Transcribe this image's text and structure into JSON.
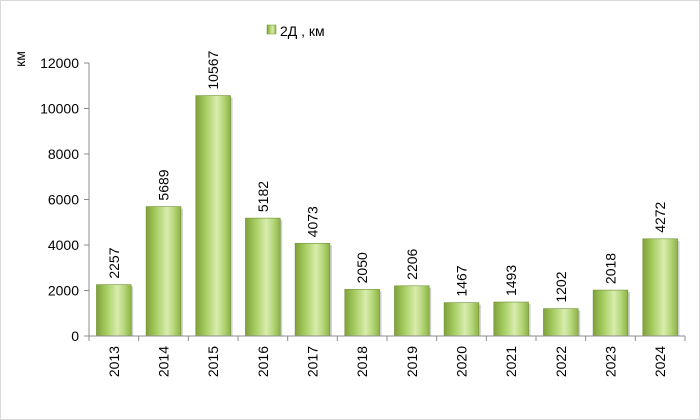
{
  "chart_data": {
    "type": "bar",
    "categories": [
      "2013",
      "2014",
      "2015",
      "2016",
      "2017",
      "2018",
      "2019",
      "2020",
      "2021",
      "2022",
      "2023",
      "2024"
    ],
    "series": [
      {
        "name": "2Д , км",
        "values": [
          2257,
          5689,
          10567,
          5182,
          4073,
          2050,
          2206,
          1467,
          1493,
          1202,
          2018,
          4272
        ]
      }
    ],
    "ylabel": "км",
    "ylim": [
      0,
      12000
    ],
    "yticks": [
      0,
      2000,
      4000,
      6000,
      8000,
      10000,
      12000
    ],
    "grid": false,
    "legend_position": "top-center",
    "colors": {
      "bar_light": "#d8ecae",
      "bar_mid": "#a8cf63",
      "bar_dark": "#7fa13a",
      "bar_edge": "#6f8f34",
      "axis": "#8c8c8c"
    }
  }
}
